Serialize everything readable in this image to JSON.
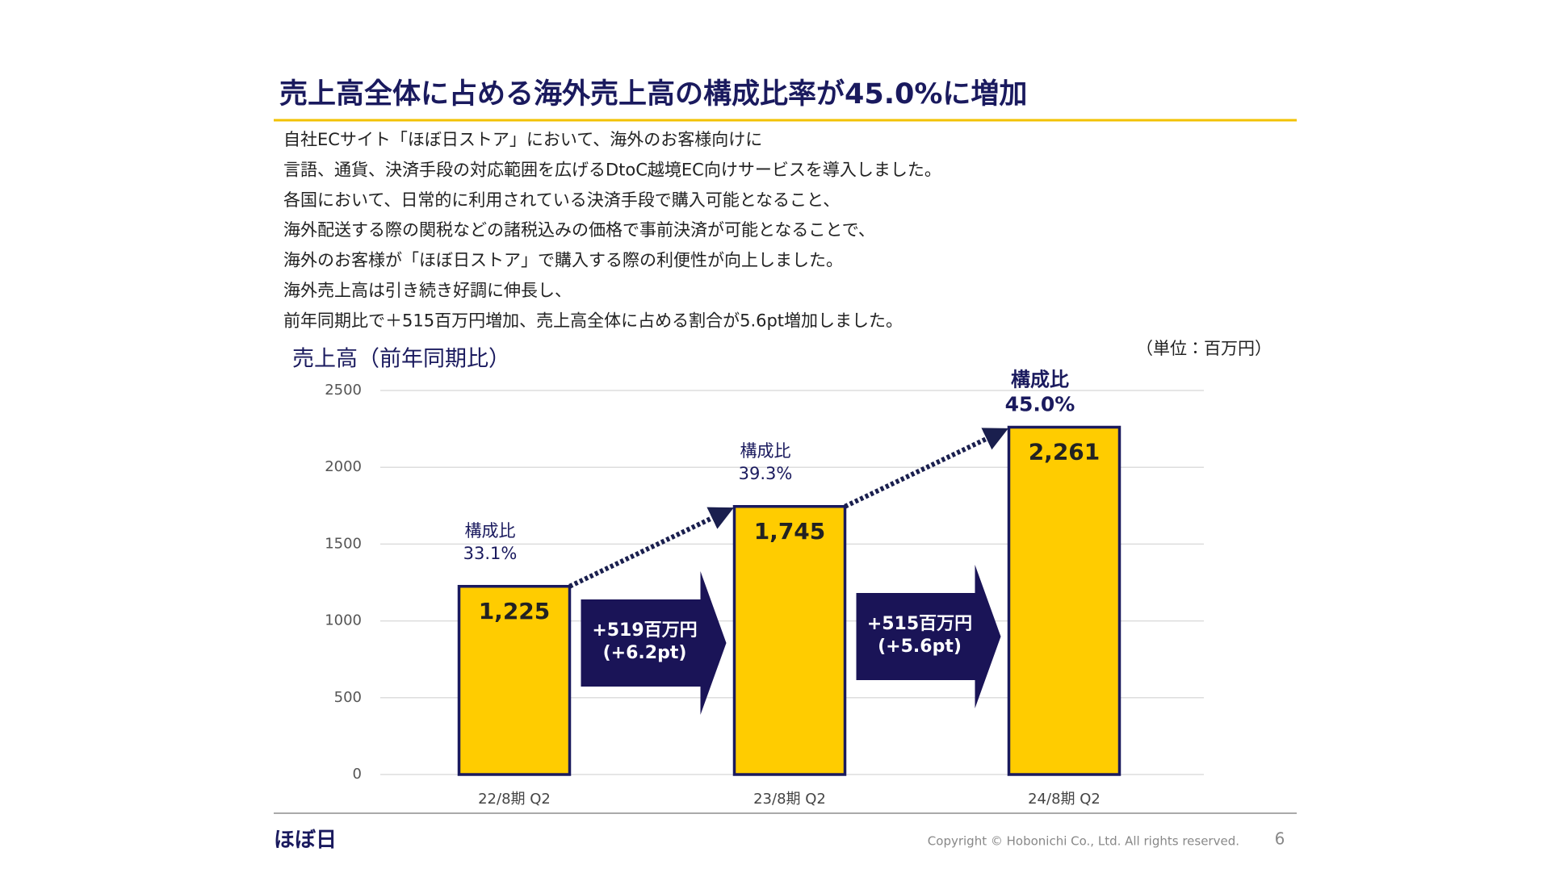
{
  "header": {
    "title": "売上高全体に占める海外売上高の構成比率が45.0%に増加"
  },
  "body": {
    "lines": [
      "自社ECサイト「ほぼ日ストア」において、海外のお客様向けに",
      "言語、通貨、決済手段の対応範囲を広げるDtoC越境EC向けサービスを導入しました。",
      "各国において、日常的に利用されている決済手段で購入可能となること、",
      "海外配送する際の関税などの諸税込みの価格で事前決済が可能となることで、",
      "海外のお客様が「ほぼ日ストア」で購入する際の利便性が向上しました。",
      "海外売上高は引き続き好調に伸長し、",
      "前年同期比で＋515百万円増加、売上高全体に占める割合が5.6pt増加しました。"
    ]
  },
  "chart_data": {
    "type": "bar",
    "title": "売上高（前年同期比）",
    "unit": "（単位：百万円）",
    "categories": [
      "22/8期 Q2",
      "23/8期 Q2",
      "24/8期 Q2"
    ],
    "values": [
      1225,
      1745,
      2261
    ],
    "value_labels": [
      "1,225",
      "1,745",
      "2,261"
    ],
    "color": "#ffcc00",
    "ylim": [
      0,
      2500
    ],
    "yticks": [
      0,
      500,
      1000,
      1500,
      2000,
      2500
    ],
    "grid": true,
    "share_labels": [
      {
        "title": "構成比",
        "value": "33.1%"
      },
      {
        "title": "構成比",
        "value": "39.3%"
      },
      {
        "title": "構成比",
        "value": "45.0%"
      }
    ],
    "growth_arrows": [
      {
        "amount": "+519百万円",
        "pt": "(+6.2pt)"
      },
      {
        "amount": "+515百万円",
        "pt": "(+5.6pt)"
      }
    ]
  },
  "footer": {
    "logo": "ほぼ日",
    "copyright": "Copyright © Hobonichi Co., Ltd. All rights reserved.",
    "page": "6"
  }
}
